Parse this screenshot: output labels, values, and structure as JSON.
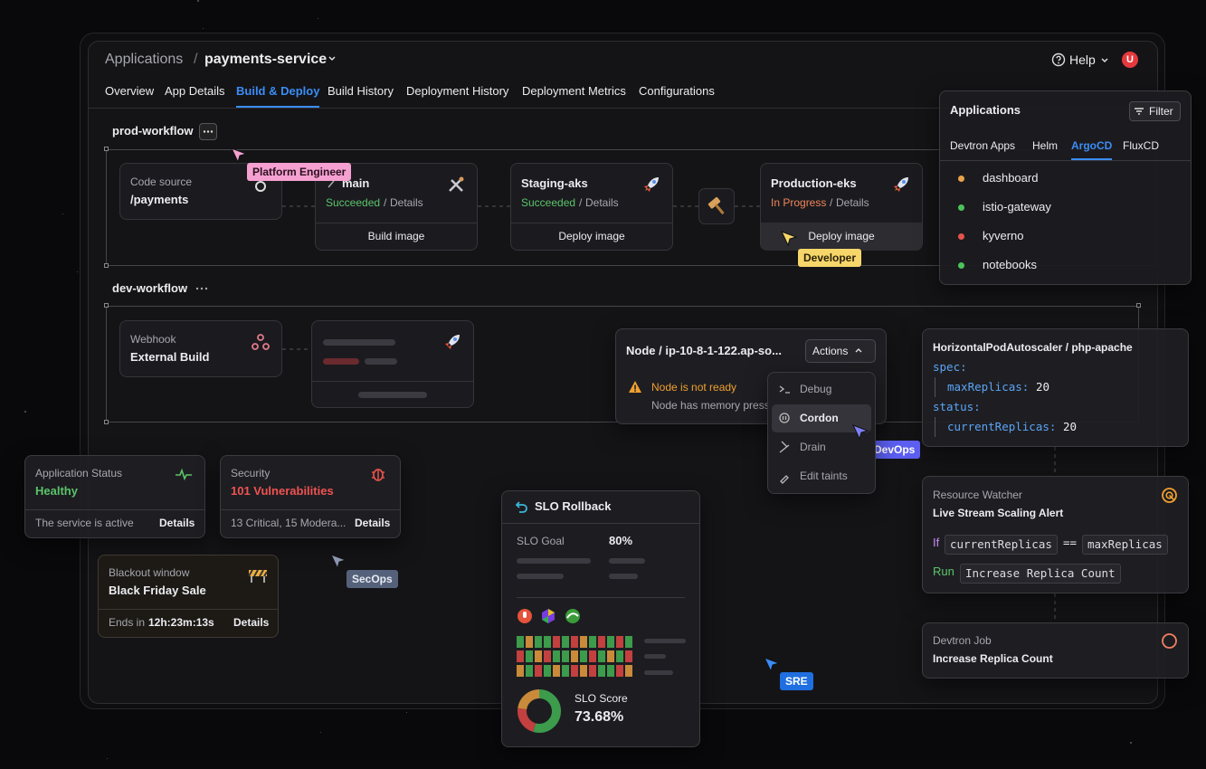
{
  "header": {
    "root": "Applications",
    "separator": "/",
    "app": "payments-service",
    "help": "Help",
    "avatar": "U"
  },
  "tabs": {
    "items": [
      "Overview",
      "App Details",
      "Build & Deploy",
      "Build History",
      "Deployment History",
      "Deployment Metrics",
      "Configurations"
    ],
    "active_index": 2
  },
  "workflows": [
    {
      "name": "prod-workflow",
      "nodes": [
        {
          "label": "Code source",
          "value": "/payments"
        },
        {
          "title": "main",
          "status": "Succeeded",
          "details": "Details",
          "action": "Build image"
        },
        {
          "title": "Staging-aks",
          "status": "Succeeded",
          "details": "Details",
          "action": "Deploy image"
        },
        {
          "title": "Production-eks",
          "status": "In Progress",
          "details": "Details",
          "action": "Deploy image"
        }
      ]
    },
    {
      "name": "dev-workflow",
      "nodes": [
        {
          "label": "Webhook",
          "value": "External Build"
        }
      ]
    }
  ],
  "cursors": [
    "Platform Engineer",
    "Developer",
    "DevOps",
    "SecOps",
    "SRE"
  ],
  "node_card": {
    "title": "Node / ip-10-8-1-122.ap-so...",
    "actions": "Actions",
    "alert": "Node is not ready",
    "detail": "Node has memory pressure",
    "menu": [
      "Debug",
      "Cordon",
      "Drain",
      "Edit taints"
    ]
  },
  "applications": {
    "title": "Applications",
    "filter": "Filter",
    "tabs": [
      "Devtron Apps",
      "Helm",
      "ArgoCD",
      "FluxCD"
    ],
    "active_tab": 2,
    "items": [
      {
        "name": "dashboard",
        "color": "#e8a24a"
      },
      {
        "name": "istio-gateway",
        "color": "#4cc35a"
      },
      {
        "name": "kyverno",
        "color": "#e5534b"
      },
      {
        "name": "notebooks",
        "color": "#4cc35a"
      }
    ]
  },
  "hpa": {
    "title": "HorizontalPodAutoscaler / php-apache",
    "lines": [
      {
        "key": "spec:"
      },
      {
        "key": "maxReplicas:",
        "value": 20
      },
      {
        "key": "status:"
      },
      {
        "key": "currentReplicas:",
        "value": 20
      }
    ]
  },
  "watcher": {
    "label": "Resource Watcher",
    "title": "Live Stream Scaling Alert",
    "if": "If",
    "left": "currentReplicas",
    "op": "==",
    "right": "maxReplicas",
    "run": "Run",
    "task": "Increase Replica Count"
  },
  "job": {
    "label": "Devtron Job",
    "title": "Increase Replica Count"
  },
  "app_status": {
    "label": "Application Status",
    "value": "Healthy",
    "note": "The service is active",
    "details": "Details"
  },
  "security": {
    "label": "Security",
    "value": "101 Vulnerabilities",
    "note": "13 Critical, 15 Modera...",
    "details": "Details"
  },
  "blackout": {
    "label": "Blackout window",
    "value": "Black Friday Sale",
    "ends": "Ends in",
    "time": "12h:23m:13s",
    "details": "Details"
  },
  "slo": {
    "title": "SLO Rollback",
    "goal_label": "SLO Goal",
    "goal": "80%",
    "score_label": "SLO Score",
    "score": "73.68%"
  }
}
